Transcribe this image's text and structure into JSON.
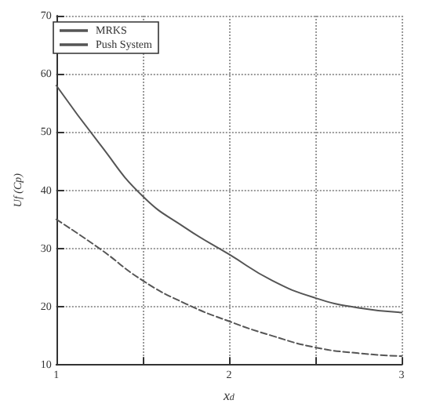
{
  "chart_data": {
    "type": "line",
    "xlabel": "x$_{d}$",
    "ylabel": "Uf (Cp)",
    "x": [
      1,
      1.25,
      1.5,
      1.75,
      2,
      2.25,
      2.5,
      2.75,
      3
    ],
    "series": [
      {
        "name": "MRKS",
        "color": "#555555",
        "line_style": "dashed",
        "values": [
          35,
          30,
          24.5,
          20.5,
          17.5,
          15,
          13,
          12,
          11.5
        ]
      },
      {
        "name": "Push System",
        "color": "#555555",
        "line_style": "solid",
        "values": [
          58,
          48,
          39,
          33.5,
          29,
          24.5,
          21.5,
          19.8,
          19
        ]
      }
    ],
    "xlim": [
      1,
      3
    ],
    "xticks": [
      1,
      {
        "value": 1.5,
        "label": null
      },
      2,
      {
        "value": 2.5,
        "label": null
      },
      3
    ],
    "ylim": [
      10,
      70
    ],
    "yticks": [
      10,
      20,
      30,
      40,
      50,
      60,
      70
    ],
    "grid": true,
    "legend": "top left",
    "marker": "none"
  }
}
